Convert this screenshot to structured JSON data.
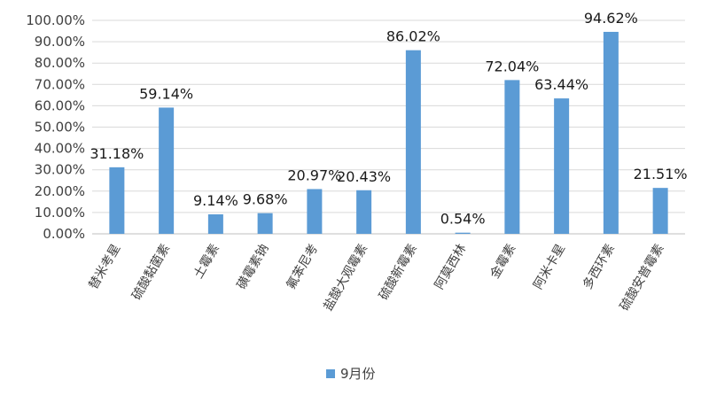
{
  "chart_data": {
    "type": "bar",
    "categories": [
      "替米考星",
      "硫酸黏菌素",
      "土霉素",
      "磺霉素钠",
      "氟苯尼考",
      "盐酸大观霉素",
      "硫酸新霉素",
      "阿莫西林",
      "金霉素",
      "阿米卡星",
      "多西环素",
      "硫酸安普霉素"
    ],
    "series": [
      {
        "name": "9月份",
        "values": [
          31.18,
          59.14,
          9.14,
          9.68,
          20.97,
          20.43,
          86.02,
          0.54,
          72.04,
          63.44,
          94.62,
          21.51
        ],
        "data_labels": [
          "31.18%",
          "59.14%",
          "9.14%",
          "9.68%",
          "20.97%",
          "20.43%",
          "86.02%",
          "0.54%",
          "72.04%",
          "63.44%",
          "94.62%",
          "21.51%"
        ]
      }
    ],
    "ylim": [
      0,
      100
    ],
    "ytick_labels": [
      "0.00%",
      "10.00%",
      "20.00%",
      "30.00%",
      "40.00%",
      "50.00%",
      "60.00%",
      "70.00%",
      "80.00%",
      "90.00%",
      "100.00%"
    ],
    "grid": true,
    "legend_position": "bottom",
    "colors": {
      "bar": "#5B9BD5",
      "grid": "#d9d9d9",
      "axis": "#bfbfbf",
      "text": "#404040"
    }
  }
}
